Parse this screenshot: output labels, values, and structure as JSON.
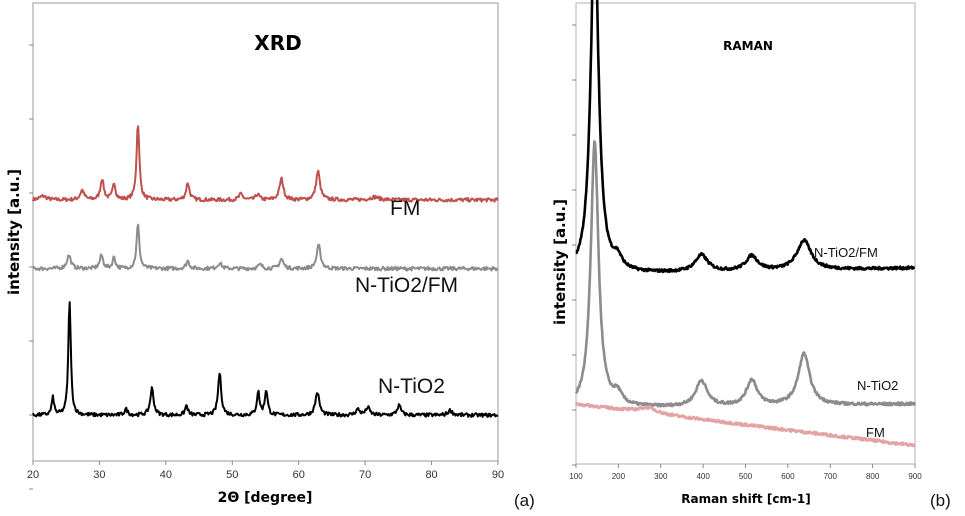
{
  "figure": {
    "panel_a_tag": "(a)",
    "panel_b_tag": "(b)"
  },
  "chart_data": [
    {
      "type": "line",
      "title": "XRD",
      "xlabel": "2Θ [degree]",
      "ylabel": "intensity [a.u.]",
      "xlim": [
        20,
        90
      ],
      "xticks": [
        20,
        30,
        40,
        50,
        60,
        70,
        80,
        90
      ],
      "grid": false,
      "baselines": {
        "FM": 0.57,
        "N-TiO2/FM": 0.42,
        "N-TiO2": 0.1
      },
      "series": [
        {
          "name": "FM",
          "color": "#c0504d",
          "peaks": [
            [
              21.5,
              0.02,
              0.6
            ],
            [
              27.4,
              0.05,
              0.35
            ],
            [
              30.4,
              0.11,
              0.3
            ],
            [
              32.2,
              0.09,
              0.25
            ],
            [
              35.8,
              0.4,
              0.25
            ],
            [
              43.3,
              0.09,
              0.3
            ],
            [
              51.3,
              0.03,
              0.35
            ],
            [
              53.8,
              0.03,
              0.3
            ],
            [
              57.4,
              0.11,
              0.35
            ],
            [
              62.9,
              0.15,
              0.35
            ],
            [
              71.4,
              0.015,
              0.8
            ]
          ]
        },
        {
          "name": "N-TiO2/FM",
          "color": "#8c8c8c",
          "peaks": [
            [
              25.4,
              0.07,
              0.35
            ],
            [
              30.3,
              0.07,
              0.3
            ],
            [
              32.2,
              0.06,
              0.25
            ],
            [
              35.8,
              0.23,
              0.25
            ],
            [
              43.3,
              0.04,
              0.3
            ],
            [
              48.1,
              0.03,
              0.35
            ],
            [
              54.2,
              0.02,
              0.35
            ],
            [
              57.4,
              0.05,
              0.35
            ],
            [
              63.0,
              0.12,
              0.35
            ]
          ]
        },
        {
          "name": "N-TiO2",
          "color": "#000000",
          "peaks": [
            [
              23.0,
              0.09,
              0.22
            ],
            [
              25.5,
              0.6,
              0.22
            ],
            [
              34.0,
              0.03,
              0.3
            ],
            [
              37.9,
              0.14,
              0.3
            ],
            [
              43.1,
              0.05,
              0.25
            ],
            [
              48.1,
              0.22,
              0.28
            ],
            [
              53.9,
              0.12,
              0.25
            ],
            [
              55.1,
              0.13,
              0.25
            ],
            [
              62.8,
              0.12,
              0.35
            ],
            [
              68.9,
              0.03,
              0.35
            ],
            [
              70.4,
              0.04,
              0.35
            ],
            [
              75.1,
              0.05,
              0.35
            ],
            [
              82.8,
              0.025,
              0.4
            ]
          ]
        }
      ]
    },
    {
      "type": "line",
      "title": "RAMAN",
      "xlabel": "Raman shift [cm-1]",
      "ylabel": "intensity [a.u.]",
      "xlim": [
        100,
        900
      ],
      "xticks": [
        100,
        200,
        300,
        400,
        500,
        600,
        700,
        800,
        900
      ],
      "grid": false,
      "series": [
        {
          "name": "N-TiO2/FM",
          "color": "#000000",
          "baseline_start": 0.41,
          "baseline_end": 0.425,
          "peaks": [
            [
              144,
              0.96,
              11
            ],
            [
              198,
              0.03,
              12
            ],
            [
              396,
              0.045,
              18
            ],
            [
              515,
              0.04,
              17
            ],
            [
              638,
              0.08,
              20
            ]
          ]
        },
        {
          "name": "N-TiO2",
          "color": "#8c8c8c",
          "baseline_start": 0.12,
          "baseline_end": 0.13,
          "peaks": [
            [
              144,
              0.72,
              11
            ],
            [
              198,
              0.03,
              12
            ],
            [
              396,
              0.07,
              16
            ],
            [
              515,
              0.07,
              15
            ],
            [
              638,
              0.14,
              16
            ]
          ]
        },
        {
          "name": "FM",
          "color": "#e3a3a3",
          "baseline_start": 0.13,
          "baseline_end": 0.04,
          "peaks": [
            [
              270,
              0.015,
              25
            ]
          ]
        }
      ]
    }
  ]
}
